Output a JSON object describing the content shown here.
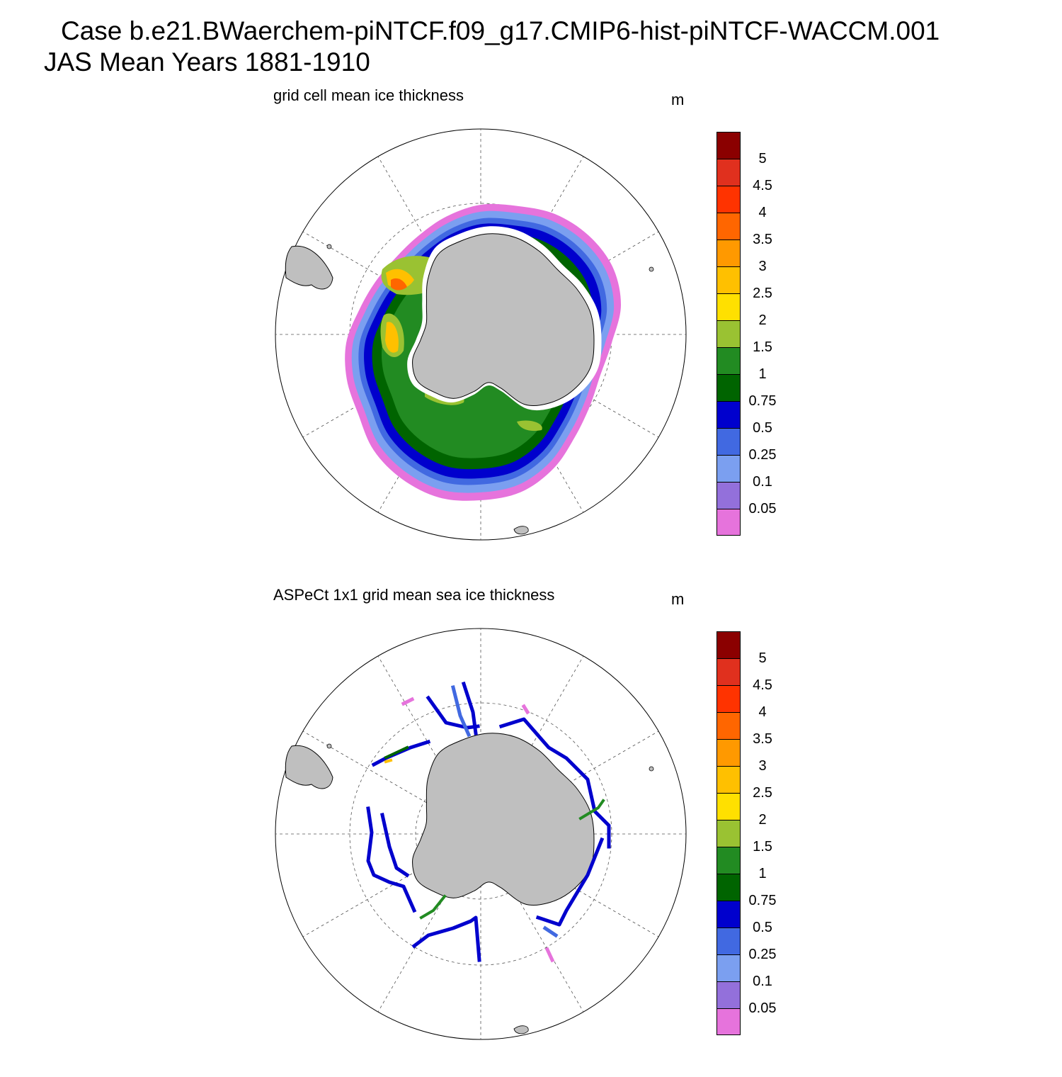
{
  "header": {
    "title_line1": "Case b.e21.BWaerchem-piNTCF.f09_g17.CMIP6-hist-piNTCF-WACCM.001",
    "title_line2": "JAS Mean   Years 1881-1910"
  },
  "panels": [
    {
      "title": "grid cell mean ice thickness",
      "units": "m",
      "field": "model"
    },
    {
      "title": "ASPeCt 1x1 grid mean sea ice thickness",
      "units": "m",
      "field": "observations"
    }
  ],
  "colorbar": {
    "labels": [
      "5",
      "4.5",
      "4",
      "3.5",
      "3",
      "2.5",
      "2",
      "1.5",
      "1",
      "0.75",
      "0.5",
      "0.25",
      "0.1",
      "0.05"
    ],
    "colors_top_to_bottom": [
      "#8b0000",
      "#e0301e",
      "#ff3300",
      "#ff6600",
      "#ff9900",
      "#ffc000",
      "#ffe000",
      "#9ac232",
      "#228b22",
      "#006400",
      "#0000cd",
      "#4169e1",
      "#7b9ff0",
      "#9370db",
      "#e673dc"
    ]
  },
  "map": {
    "projection": "south-polar-stereographic",
    "land_color": "#bfbfbf",
    "grid_style": "dashed"
  }
}
